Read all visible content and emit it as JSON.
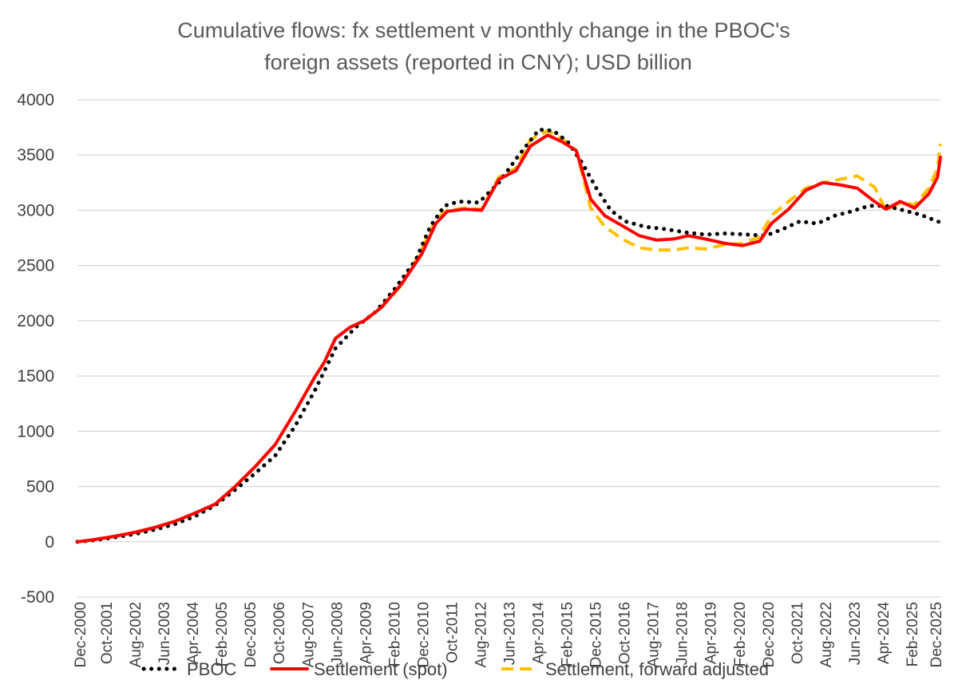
{
  "chart_data": {
    "type": "line",
    "title": "Cumulative flows: fx settlement v monthly change in the PBOC's foreign assets (reported in CNY); USD billion",
    "title_lines": [
      "Cumulative flows: fx settlement v monthly change in the PBOC's",
      "foreign assets (reported in CNY); USD billion"
    ],
    "xlabel": "",
    "ylabel": "",
    "ylim": [
      -500,
      4000
    ],
    "yticks": [
      -500,
      0,
      500,
      1000,
      1500,
      2000,
      2500,
      3000,
      3500,
      4000
    ],
    "x_start": "2000-12",
    "x_end": "2026-01",
    "xtick_labels": [
      "Dec-2000",
      "Oct-2001",
      "Aug-2002",
      "Jun-2003",
      "Apr-2004",
      "Feb-2005",
      "Dec-2005",
      "Oct-2006",
      "Aug-2007",
      "Jun-2008",
      "Apr-2009",
      "Feb-2010",
      "Dec-2010",
      "Oct-2011",
      "Aug-2012",
      "Jun-2013",
      "Apr-2014",
      "Feb-2015",
      "Dec-2015",
      "Oct-2016",
      "Aug-2017",
      "Jun-2018",
      "Apr-2019",
      "Feb-2020",
      "Dec-2020",
      "Oct-2021",
      "Aug-2022",
      "Jun-2023",
      "Apr-2024",
      "Feb-2025",
      "Dec-2025"
    ],
    "legend": {
      "position": "bottom"
    },
    "series": [
      {
        "name": "PBOC",
        "color": "#000000",
        "style": "dotted",
        "points": [
          [
            "2000-12",
            0
          ],
          [
            "2001-06",
            15
          ],
          [
            "2002-01",
            40
          ],
          [
            "2002-08",
            70
          ],
          [
            "2003-03",
            110
          ],
          [
            "2003-10",
            160
          ],
          [
            "2004-05",
            230
          ],
          [
            "2004-12",
            330
          ],
          [
            "2005-07",
            470
          ],
          [
            "2006-02",
            620
          ],
          [
            "2006-09",
            780
          ],
          [
            "2007-04",
            1050
          ],
          [
            "2007-11",
            1380
          ],
          [
            "2008-06",
            1750
          ],
          [
            "2009-01",
            1940
          ],
          [
            "2009-08",
            2080
          ],
          [
            "2010-03",
            2300
          ],
          [
            "2010-10",
            2550
          ],
          [
            "2011-03",
            2850
          ],
          [
            "2011-08",
            3040
          ],
          [
            "2012-01",
            3080
          ],
          [
            "2012-08",
            3070
          ],
          [
            "2013-03",
            3250
          ],
          [
            "2013-10",
            3500
          ],
          [
            "2014-05",
            3730
          ],
          [
            "2014-10",
            3720
          ],
          [
            "2015-03",
            3620
          ],
          [
            "2015-08",
            3430
          ],
          [
            "2016-01",
            3200
          ],
          [
            "2016-06",
            3000
          ],
          [
            "2016-11",
            2900
          ],
          [
            "2017-06",
            2850
          ],
          [
            "2018-01",
            2830
          ],
          [
            "2018-08",
            2800
          ],
          [
            "2019-03",
            2780
          ],
          [
            "2019-10",
            2790
          ],
          [
            "2020-06",
            2780
          ],
          [
            "2020-12",
            2770
          ],
          [
            "2021-06",
            2830
          ],
          [
            "2021-12",
            2900
          ],
          [
            "2022-06",
            2880
          ],
          [
            "2022-12",
            2950
          ],
          [
            "2023-06",
            2990
          ],
          [
            "2023-12",
            3040
          ],
          [
            "2024-06",
            3040
          ],
          [
            "2024-12",
            3000
          ],
          [
            "2025-06",
            2960
          ],
          [
            "2026-01",
            2890
          ]
        ]
      },
      {
        "name": "Settlement (spot)",
        "color": "#ff0000",
        "style": "solid",
        "points": [
          [
            "2000-12",
            0
          ],
          [
            "2001-06",
            20
          ],
          [
            "2002-01",
            50
          ],
          [
            "2002-08",
            85
          ],
          [
            "2003-03",
            130
          ],
          [
            "2003-10",
            185
          ],
          [
            "2004-05",
            260
          ],
          [
            "2004-12",
            340
          ],
          [
            "2005-07",
            500
          ],
          [
            "2006-02",
            680
          ],
          [
            "2006-09",
            880
          ],
          [
            "2007-04",
            1180
          ],
          [
            "2007-11",
            1500
          ],
          [
            "2008-02",
            1620
          ],
          [
            "2008-06",
            1840
          ],
          [
            "2008-11",
            1940
          ],
          [
            "2009-04",
            2000
          ],
          [
            "2009-10",
            2120
          ],
          [
            "2010-05",
            2330
          ],
          [
            "2010-12",
            2600
          ],
          [
            "2011-05",
            2880
          ],
          [
            "2011-09",
            2990
          ],
          [
            "2012-03",
            3010
          ],
          [
            "2012-09",
            3000
          ],
          [
            "2013-03",
            3280
          ],
          [
            "2013-09",
            3360
          ],
          [
            "2014-02",
            3580
          ],
          [
            "2014-08",
            3680
          ],
          [
            "2015-01",
            3620
          ],
          [
            "2015-06",
            3540
          ],
          [
            "2015-11",
            3100
          ],
          [
            "2016-04",
            2950
          ],
          [
            "2016-10",
            2860
          ],
          [
            "2017-04",
            2770
          ],
          [
            "2017-10",
            2730
          ],
          [
            "2018-04",
            2740
          ],
          [
            "2018-09",
            2770
          ],
          [
            "2019-03",
            2740
          ],
          [
            "2019-10",
            2700
          ],
          [
            "2020-04",
            2680
          ],
          [
            "2020-10",
            2720
          ],
          [
            "2021-02",
            2880
          ],
          [
            "2021-08",
            3010
          ],
          [
            "2022-02",
            3180
          ],
          [
            "2022-08",
            3250
          ],
          [
            "2023-02",
            3230
          ],
          [
            "2023-08",
            3200
          ],
          [
            "2024-02",
            3080
          ],
          [
            "2024-06",
            3010
          ],
          [
            "2024-11",
            3080
          ],
          [
            "2025-04",
            3020
          ],
          [
            "2025-09",
            3150
          ],
          [
            "2025-12",
            3300
          ],
          [
            "2026-01",
            3480
          ]
        ]
      },
      {
        "name": "Settlement, forward adjusted",
        "color": "#ffc000",
        "style": "dashed",
        "points": [
          [
            "2000-12",
            0
          ],
          [
            "2001-06",
            20
          ],
          [
            "2002-01",
            50
          ],
          [
            "2002-08",
            85
          ],
          [
            "2003-03",
            130
          ],
          [
            "2003-10",
            185
          ],
          [
            "2004-05",
            260
          ],
          [
            "2004-12",
            340
          ],
          [
            "2005-07",
            500
          ],
          [
            "2006-02",
            680
          ],
          [
            "2006-09",
            880
          ],
          [
            "2007-04",
            1180
          ],
          [
            "2007-11",
            1500
          ],
          [
            "2008-02",
            1620
          ],
          [
            "2008-06",
            1840
          ],
          [
            "2008-11",
            1940
          ],
          [
            "2009-04",
            2000
          ],
          [
            "2009-10",
            2120
          ],
          [
            "2010-05",
            2320
          ],
          [
            "2010-12",
            2640
          ],
          [
            "2011-05",
            2920
          ],
          [
            "2011-09",
            3000
          ],
          [
            "2012-03",
            3020
          ],
          [
            "2012-09",
            3010
          ],
          [
            "2013-03",
            3300
          ],
          [
            "2013-09",
            3380
          ],
          [
            "2014-02",
            3640
          ],
          [
            "2014-08",
            3720
          ],
          [
            "2015-01",
            3650
          ],
          [
            "2015-06",
            3540
          ],
          [
            "2015-11",
            3020
          ],
          [
            "2016-04",
            2850
          ],
          [
            "2016-10",
            2740
          ],
          [
            "2017-04",
            2660
          ],
          [
            "2017-10",
            2640
          ],
          [
            "2018-04",
            2640
          ],
          [
            "2018-09",
            2660
          ],
          [
            "2019-03",
            2650
          ],
          [
            "2019-10",
            2690
          ],
          [
            "2020-04",
            2700
          ],
          [
            "2020-10",
            2760
          ],
          [
            "2021-02",
            2950
          ],
          [
            "2021-08",
            3080
          ],
          [
            "2022-02",
            3200
          ],
          [
            "2022-08",
            3250
          ],
          [
            "2023-02",
            3280
          ],
          [
            "2023-08",
            3310
          ],
          [
            "2024-02",
            3210
          ],
          [
            "2024-06",
            3000
          ],
          [
            "2024-11",
            3070
          ],
          [
            "2025-04",
            3050
          ],
          [
            "2025-09",
            3200
          ],
          [
            "2025-12",
            3380
          ],
          [
            "2026-01",
            3600
          ]
        ]
      }
    ]
  }
}
